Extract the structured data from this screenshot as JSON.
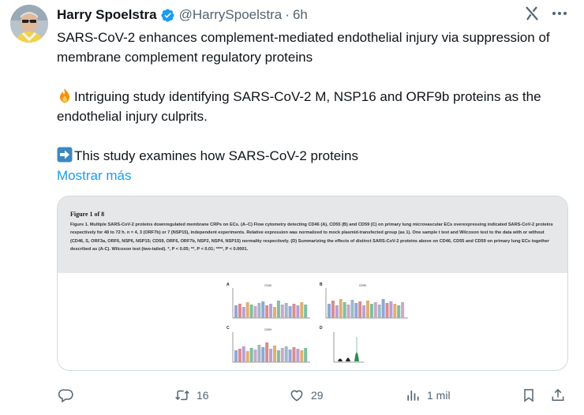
{
  "tweet": {
    "author_name": "Harry Spoelstra",
    "handle": "@HarrySpoelstra",
    "separator": "·",
    "time": "6h",
    "lines": [
      "SARS-CoV-2 enhances complement-mediated endothelial injury via suppression of membrane complement regulatory proteins",
      "Intriguing study identifying SARS-CoV-2 M, NSP16 and ORF9b proteins as the endothelial injury culprits.",
      "This study examines how SARS-CoV-2 proteins"
    ],
    "show_more": "Mostrar más"
  },
  "media": {
    "figure_title": "Figure 1 of 8",
    "figure_caption": "Figure 1. Multiple SARS-CoV-2 proteins downregulated membrane CRPs on ECs. (A–C) Flow cytometry detecting CD46 (A), CD55 (B) and CD59 (C) on primary lung microvascular ECs overexpressing indicated SARS-CoV-2 proteins respectively for 48 to 72 h. n = 4, 3 (ORF7b) or 7 (NSP15), independent experiments. Relative expression was normalized to mock plasmid-transfected group (as 1). One sample t test and Wilcoxon test to the data with or without (CD46, S, ORF3a, ORF6, NSP6, NSP15; CD59, ORF6, ORF7b, NSP2, NSP4, NSP15) normality respectively. (D) Summarizing the effects of distinct SARS-CoV-2 proteins above on CD46, CD55 and CD59 on primary lung ECs together described as (A-C). Wilcoxon test (two-tailed). *, P < 0.05; **, P < 0.01; ****, P < 0.0001.",
    "panels": [
      {
        "letter": "A",
        "title": "CD46"
      },
      {
        "letter": "B",
        "title": "CD55"
      },
      {
        "letter": "C",
        "title": "CD59"
      },
      {
        "letter": "D",
        "title": ""
      }
    ]
  },
  "actions": {
    "replies": "",
    "retweets": "16",
    "likes": "29",
    "views": "1 mil"
  },
  "colors": {
    "accent": "#1d9bf0",
    "muted": "#536471",
    "verified": "#1d9bf0"
  },
  "icons": [
    "avatar",
    "verified-badge-icon",
    "grok-icon",
    "more-icon",
    "fire-emoji",
    "arrow-right-emoji",
    "reply-icon",
    "retweet-icon",
    "like-icon",
    "views-icon",
    "bookmark-icon",
    "share-icon"
  ]
}
